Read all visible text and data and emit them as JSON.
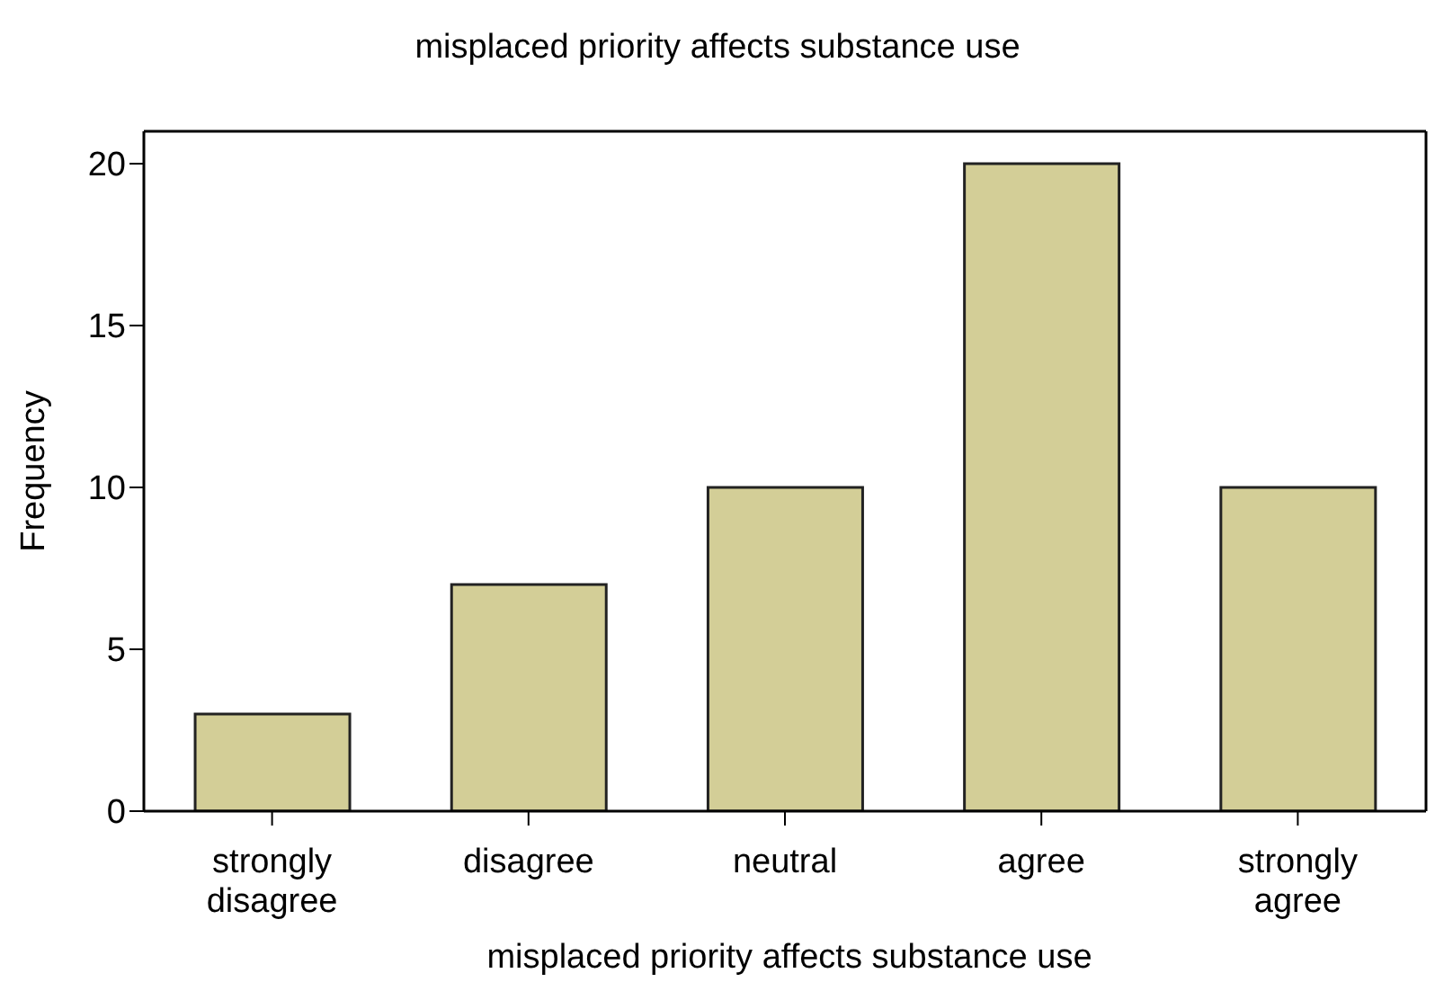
{
  "chart_data": {
    "type": "bar",
    "title": "misplaced priority affects substance use",
    "xlabel": "misplaced priority affects substance use",
    "ylabel": "Frequency",
    "categories": [
      "strongly disagree",
      "disagree",
      "neutral",
      "agree",
      "strongly agree"
    ],
    "values": [
      3,
      7,
      10,
      20,
      10
    ],
    "color": "#d3ce97",
    "ylim": [
      0,
      21
    ],
    "yticks": [
      0,
      5,
      10,
      15,
      20
    ],
    "grid": false
  }
}
